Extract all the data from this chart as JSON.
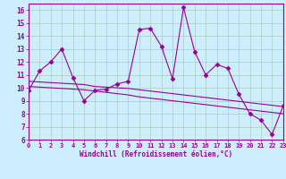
{
  "xlabel": "Windchill (Refroidissement éolien,°C)",
  "bg_color": "#cceeff",
  "line_color": "#990099",
  "grid_color": "#aaccbb",
  "x": [
    0,
    1,
    2,
    3,
    4,
    5,
    6,
    7,
    8,
    9,
    10,
    11,
    12,
    13,
    14,
    15,
    16,
    17,
    18,
    19,
    20,
    21,
    22,
    23
  ],
  "y_main": [
    9.8,
    11.3,
    12.0,
    13.0,
    10.8,
    9.0,
    9.8,
    9.9,
    10.3,
    10.5,
    14.5,
    14.6,
    13.2,
    10.7,
    16.2,
    12.8,
    11.0,
    11.8,
    11.5,
    9.5,
    8.0,
    7.5,
    6.4,
    8.6
  ],
  "y_trend1": [
    10.5,
    10.45,
    10.4,
    10.35,
    10.3,
    10.25,
    10.1,
    10.05,
    10.0,
    9.95,
    9.85,
    9.75,
    9.65,
    9.55,
    9.45,
    9.35,
    9.25,
    9.15,
    9.05,
    8.95,
    8.85,
    8.75,
    8.65,
    8.55
  ],
  "y_trend2": [
    10.1,
    10.05,
    10.0,
    9.95,
    9.9,
    9.85,
    9.75,
    9.65,
    9.55,
    9.45,
    9.3,
    9.2,
    9.1,
    9.0,
    8.9,
    8.8,
    8.7,
    8.6,
    8.5,
    8.4,
    8.3,
    8.2,
    8.1,
    8.0
  ],
  "xlim": [
    0,
    23
  ],
  "ylim": [
    6,
    16.5
  ],
  "yticks": [
    6,
    7,
    8,
    9,
    10,
    11,
    12,
    13,
    14,
    15,
    16
  ],
  "xticks": [
    0,
    1,
    2,
    3,
    4,
    5,
    6,
    7,
    8,
    9,
    10,
    11,
    12,
    13,
    14,
    15,
    16,
    17,
    18,
    19,
    20,
    21,
    22,
    23
  ]
}
